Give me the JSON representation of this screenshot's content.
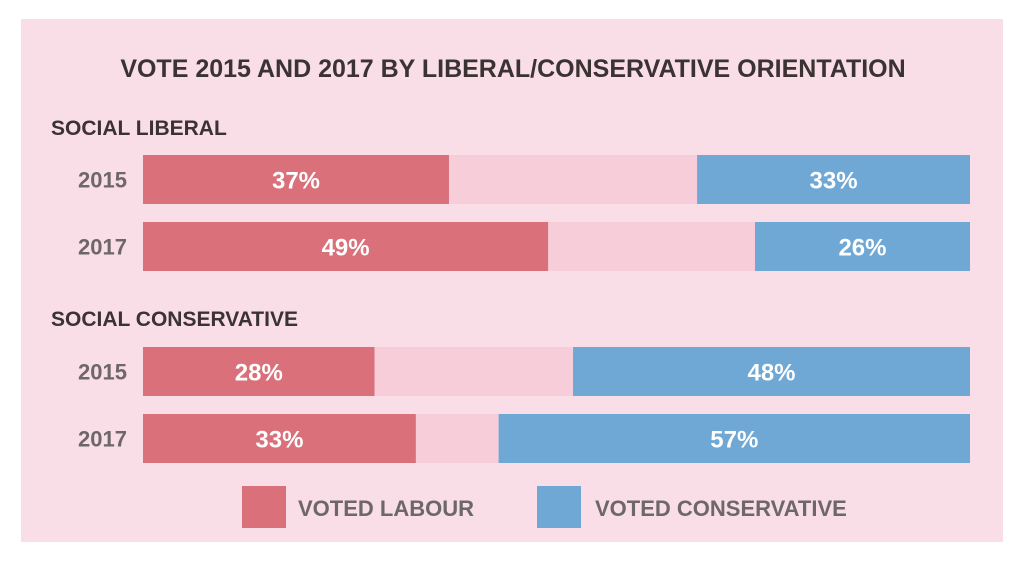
{
  "chart_data": {
    "type": "bar",
    "orientation": "horizontal",
    "stacked": true,
    "title": "VOTE 2015 AND 2017 BY LIBERAL/CONSERVATIVE ORIENTATION",
    "xlim": [
      0,
      100
    ],
    "groups": [
      {
        "label": "SOCIAL LIBERAL",
        "rows": [
          {
            "year": "2015",
            "labour": 37,
            "conservative": 33,
            "labour_label": "37%",
            "conservative_label": "33%"
          },
          {
            "year": "2017",
            "labour": 49,
            "conservative": 26,
            "labour_label": "49%",
            "conservative_label": "26%"
          }
        ]
      },
      {
        "label": "SOCIAL CONSERVATIVE",
        "rows": [
          {
            "year": "2015",
            "labour": 28,
            "conservative": 48,
            "labour_label": "28%",
            "conservative_label": "48%"
          },
          {
            "year": "2017",
            "labour": 33,
            "conservative": 57,
            "labour_label": "33%",
            "conservative_label": "57%"
          }
        ]
      }
    ],
    "legend": [
      {
        "label": "VOTED LABOUR",
        "color": "#d9707a"
      },
      {
        "label": "VOTED CONSERVATIVE",
        "color": "#6fa8d5"
      }
    ],
    "legend_position": "bottom",
    "colors": {
      "labour": "#d9707a",
      "conservative": "#6fa8d5",
      "other": "#f8cdda",
      "background": "#f9dde7"
    },
    "grid": false
  }
}
